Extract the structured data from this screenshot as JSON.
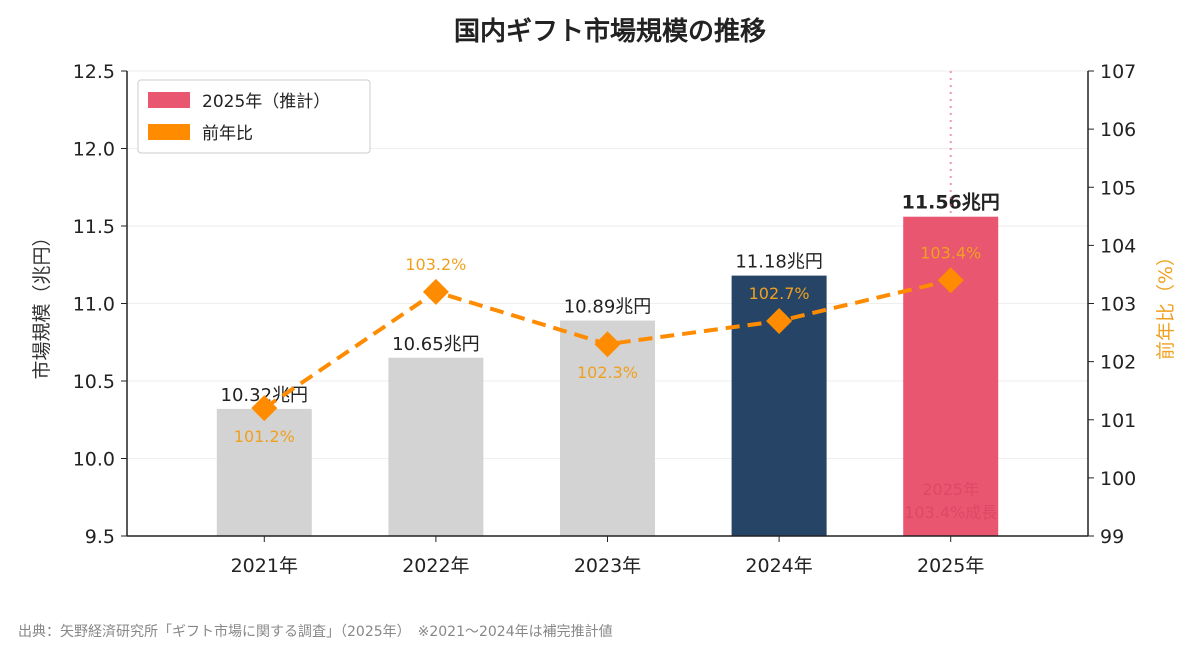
{
  "chart_data": {
    "type": "bar",
    "title": "国内ギフト市場規模の推移",
    "categories": [
      "2021年",
      "2022年",
      "2023年",
      "2024年",
      "2025年"
    ],
    "series": [
      {
        "name": "",
        "axis": "left",
        "type": "bar",
        "values": [
          10.32,
          10.65,
          10.89,
          11.18,
          11.56
        ],
        "labels": [
          "10.32兆円",
          "10.65兆円",
          "10.89兆円",
          "11.18兆円",
          "11.56兆円"
        ],
        "colors": [
          "#d3d3d3",
          "#d3d3d3",
          "#d3d3d3",
          "#264466",
          "#e8566f"
        ]
      },
      {
        "name": "前年比",
        "axis": "right",
        "type": "line",
        "values": [
          101.2,
          103.2,
          102.3,
          102.7,
          103.4
        ],
        "labels": [
          "101.2%",
          "103.2%",
          "102.3%",
          "102.7%",
          "103.4%"
        ],
        "color": "#ff8c00"
      }
    ],
    "legend": {
      "position": "top-left",
      "entries": [
        {
          "label": "2025年（推計）",
          "color": "#e8566f"
        },
        {
          "label": "前年比",
          "color": "#ff8c00"
        }
      ]
    },
    "ylabel": "市場規模（兆円）",
    "ylabel_right": "前年比（%）",
    "ylim": [
      9.5,
      12.5
    ],
    "yticks": [
      "9.5",
      "10.0",
      "10.5",
      "11.0",
      "11.5",
      "12.0",
      "12.5"
    ],
    "ylim_right": [
      99,
      107
    ],
    "yticks_right": [
      "99",
      "100",
      "101",
      "102",
      "103",
      "104",
      "105",
      "106",
      "107"
    ],
    "grid": "horizontal",
    "annotation": [
      "2025年",
      "103.4%成長"
    ],
    "source": "出典：矢野経済研究所「ギフト市場に関する調査」（2025年）　※2021〜2024年は補完推計値"
  }
}
